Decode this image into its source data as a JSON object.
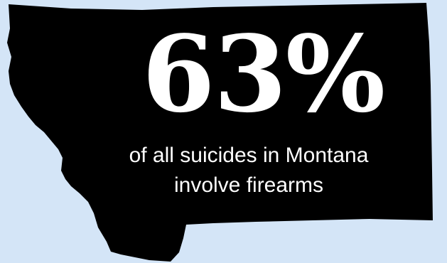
{
  "infographic": {
    "stat_value": "63%",
    "caption_line1": "of all suicides in Montana",
    "caption_line2": "involve firearms"
  },
  "colors": {
    "background": "#d4e5f7",
    "map_fill": "#000000",
    "text": "#ffffff"
  }
}
